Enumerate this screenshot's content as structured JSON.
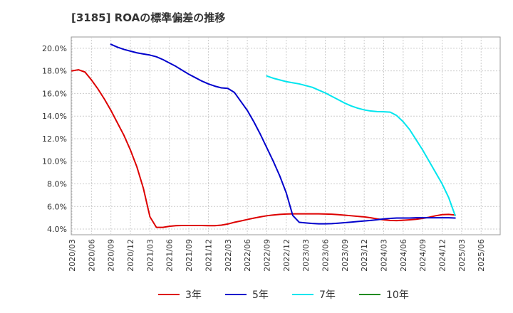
{
  "chart_data": {
    "type": "line",
    "title": "[3185]  ROAの標準偏差の推移",
    "xlabel": "",
    "ylabel": "",
    "ylim": [
      3.5,
      21.0
    ],
    "yticks": [
      4.0,
      6.0,
      8.0,
      10.0,
      12.0,
      14.0,
      16.0,
      18.0,
      20.0
    ],
    "ytick_labels": [
      "4.0%",
      "6.0%",
      "8.0%",
      "10.0%",
      "12.0%",
      "14.0%",
      "16.0%",
      "18.0%",
      "20.0%"
    ],
    "x_start": "2020/03",
    "x_tick_step_months": 3,
    "x_tick_labels": [
      "2020/03",
      "2020/06",
      "2020/09",
      "2020/12",
      "2021/03",
      "2021/06",
      "2021/09",
      "2021/12",
      "2022/03",
      "2022/06",
      "2022/09",
      "2022/12",
      "2023/03",
      "2023/06",
      "2023/09",
      "2023/12",
      "2024/03",
      "2024/06",
      "2024/09",
      "2024/12",
      "2025/03",
      "2025/06"
    ],
    "grid": true,
    "legend": "bottom",
    "series": [
      {
        "name": "3年",
        "color": "#dd0000",
        "start_index": 0,
        "values": [
          18.0,
          18.1,
          17.9,
          17.2,
          16.4,
          15.5,
          14.5,
          13.4,
          12.3,
          11.0,
          9.5,
          7.6,
          5.1,
          4.15,
          4.15,
          4.25,
          4.3,
          4.32,
          4.32,
          4.32,
          4.32,
          4.3,
          4.3,
          4.35,
          4.45,
          4.6,
          4.72,
          4.85,
          4.97,
          5.08,
          5.18,
          5.25,
          5.3,
          5.33,
          5.35,
          5.35,
          5.35,
          5.35,
          5.35,
          5.33,
          5.32,
          5.28,
          5.23,
          5.18,
          5.13,
          5.08,
          5.0,
          4.9,
          4.82,
          4.77,
          4.75,
          4.78,
          4.82,
          4.87,
          4.95,
          5.05,
          5.18,
          5.28,
          5.3,
          5.25
        ]
      },
      {
        "name": "5年",
        "color": "#0000cc",
        "start_index": 6,
        "values": [
          20.35,
          20.1,
          19.9,
          19.75,
          19.6,
          19.5,
          19.4,
          19.25,
          19.0,
          18.7,
          18.4,
          18.05,
          17.7,
          17.4,
          17.1,
          16.85,
          16.65,
          16.5,
          16.45,
          16.1,
          15.3,
          14.5,
          13.5,
          12.4,
          11.2,
          10.0,
          8.7,
          7.2,
          5.2,
          4.6,
          4.55,
          4.5,
          4.47,
          4.47,
          4.48,
          4.52,
          4.57,
          4.62,
          4.67,
          4.72,
          4.77,
          4.83,
          4.9,
          4.95,
          4.98,
          4.98,
          4.98,
          5.0,
          5.0,
          5.0,
          5.0,
          5.0,
          5.0,
          4.98
        ]
      },
      {
        "name": "7年",
        "color": "#00e5ee",
        "start_index": 30,
        "values": [
          17.55,
          17.35,
          17.2,
          17.05,
          16.95,
          16.85,
          16.7,
          16.55,
          16.3,
          16.05,
          15.75,
          15.45,
          15.15,
          14.9,
          14.7,
          14.55,
          14.45,
          14.4,
          14.38,
          14.35,
          14.05,
          13.5,
          12.8,
          11.9,
          11.0,
          10.0,
          9.0,
          8.0,
          6.8,
          5.2
        ]
      },
      {
        "name": "10年",
        "color": "#228b22",
        "start_index": 0,
        "values": []
      }
    ]
  }
}
